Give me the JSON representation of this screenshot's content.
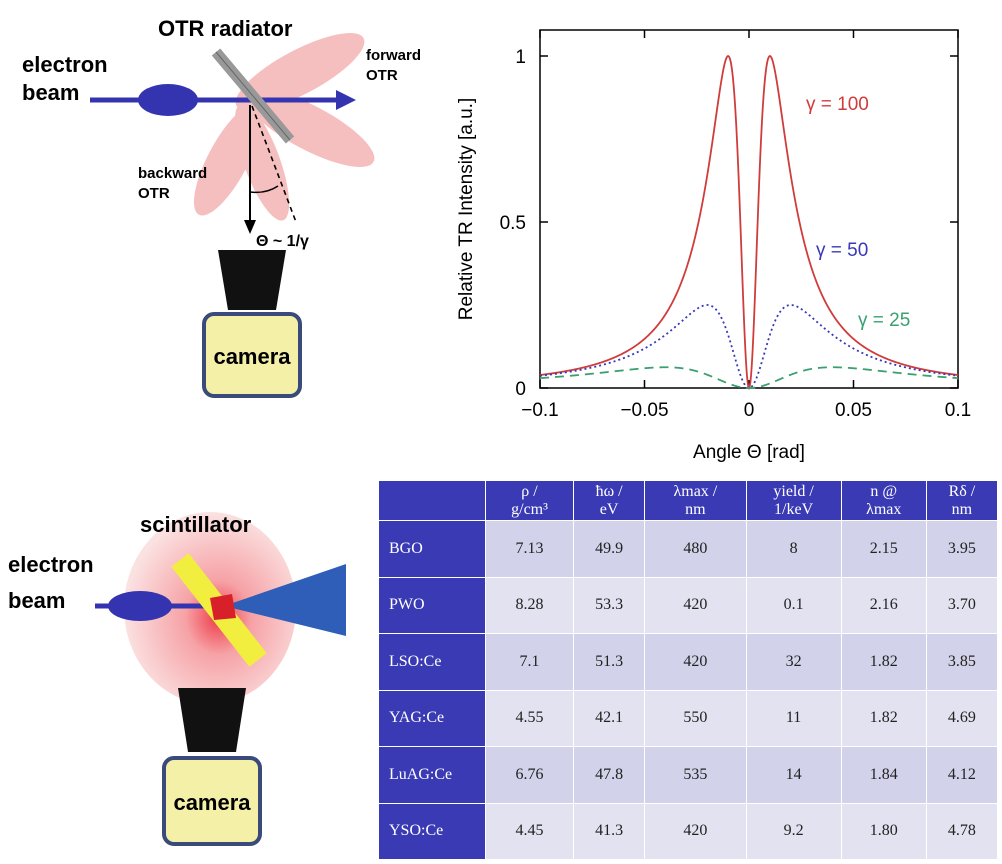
{
  "otr_diagram": {
    "title": "OTR radiator",
    "beam_label_1": "electron",
    "beam_label_2": "beam",
    "forward_label_1": "forward",
    "forward_label_2": "OTR",
    "backward_label_1": "backward",
    "backward_label_2": "OTR",
    "angle_label": "Θ ~ 1/γ",
    "camera_label": "camera"
  },
  "scint_diagram": {
    "title": "scintillator",
    "beam_label_1": "electron",
    "beam_label_2": "beam",
    "camera_label": "camera"
  },
  "chart_data": {
    "type": "line",
    "xlabel": "Angle Θ [rad]",
    "ylabel": "Relative TR Intensity [a.u.]",
    "xlim": [
      -0.1,
      0.1
    ],
    "ylim": [
      0,
      1
    ],
    "x_ticks": [
      "−0.1",
      "−0.05",
      "0",
      "0.05",
      "0.1"
    ],
    "y_ticks": [
      "0",
      "0.5",
      "1"
    ],
    "series": [
      {
        "name": "γ = 100",
        "gamma": 100,
        "peak_x": 0.01,
        "peak_y": 1.0,
        "color": "#d03c3c",
        "style": "solid"
      },
      {
        "name": "γ = 50",
        "gamma": 50,
        "peak_x": 0.02,
        "peak_y": 0.25,
        "color": "#3838b8",
        "style": "dotted"
      },
      {
        "name": "γ = 25",
        "gamma": 25,
        "peak_x": 0.04,
        "peak_y": 0.0625,
        "color": "#3aa070",
        "style": "dashed"
      }
    ]
  },
  "table": {
    "headers": [
      {
        "l1": "ρ /",
        "l2": "g/cm³"
      },
      {
        "l1": "ħω /",
        "l2": "eV"
      },
      {
        "l1": "λmax /",
        "l2": "nm"
      },
      {
        "l1": "yield /",
        "l2": "1/keV"
      },
      {
        "l1": "n @",
        "l2": "λmax"
      },
      {
        "l1": "Rδ /",
        "l2": "nm"
      }
    ],
    "rows": [
      {
        "material": "BGO",
        "values": [
          "7.13",
          "49.9",
          "480",
          "8",
          "2.15",
          "3.95"
        ]
      },
      {
        "material": "PWO",
        "values": [
          "8.28",
          "53.3",
          "420",
          "0.1",
          "2.16",
          "3.70"
        ]
      },
      {
        "material": "LSO:Ce",
        "values": [
          "7.1",
          "51.3",
          "420",
          "32",
          "1.82",
          "3.85"
        ]
      },
      {
        "material": "YAG:Ce",
        "values": [
          "4.55",
          "42.1",
          "550",
          "11",
          "1.82",
          "4.69"
        ]
      },
      {
        "material": "LuAG:Ce",
        "values": [
          "6.76",
          "47.8",
          "535",
          "14",
          "1.84",
          "4.12"
        ]
      },
      {
        "material": "YSO:Ce",
        "values": [
          "4.45",
          "41.3",
          "420",
          "9.2",
          "1.80",
          "4.78"
        ]
      }
    ]
  }
}
